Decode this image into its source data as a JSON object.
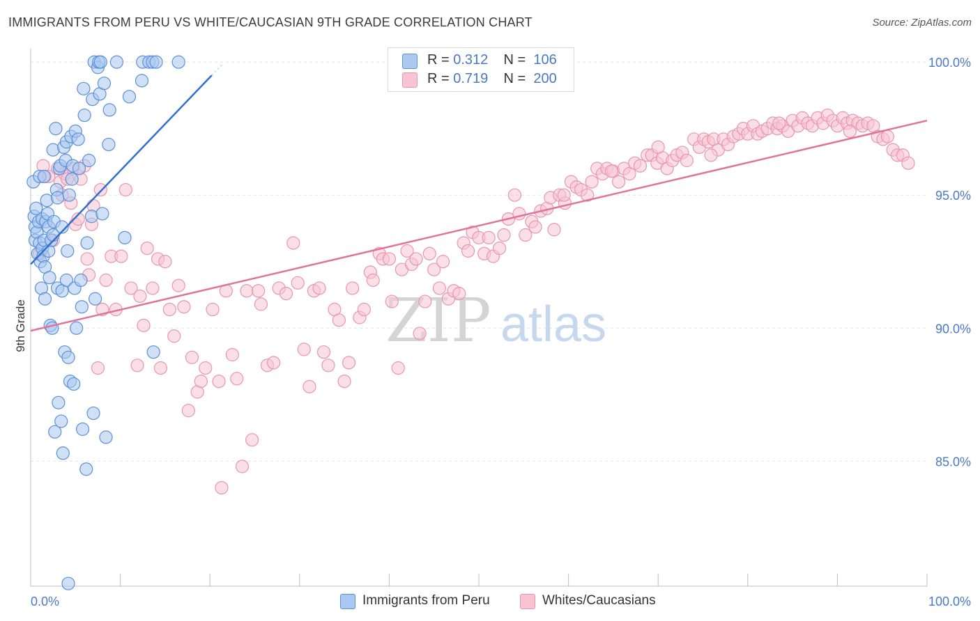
{
  "header": {
    "title": "IMMIGRANTS FROM PERU VS WHITE/CAUCASIAN 9TH GRADE CORRELATION CHART",
    "source": "Source: ZipAtlas.com"
  },
  "watermark": {
    "zip": "ZIP",
    "atlas": "atlas"
  },
  "legend": {
    "rows": [
      {
        "r_label": "R =",
        "r_value": "0.312",
        "n_label": "N =",
        "n_value": "106"
      },
      {
        "r_label": "R =",
        "r_value": "0.719",
        "n_label": "N =",
        "n_value": "200"
      }
    ]
  },
  "bottom_legend": {
    "series1": "Immigrants from Peru",
    "series2": "Whites/Caucasians"
  },
  "colors": {
    "blue_fill": "#aac8f0",
    "blue_stroke": "#5b8fd6",
    "blue_line": "#2f6fd0",
    "pink_fill": "#f7c4d4",
    "pink_stroke": "#e895b0",
    "pink_line": "#e0739b",
    "tick_text": "#4a78c8",
    "grid": "#e2e2e2"
  },
  "chart_data": {
    "type": "scatter",
    "title": "IMMIGRANTS FROM PERU VS WHITE/CAUCASIAN 9TH GRADE CORRELATION CHART",
    "xlabel": "",
    "ylabel": "9th Grade",
    "xlim": [
      0,
      100
    ],
    "ylim": [
      80.3,
      100.5
    ],
    "x_tick_labels": [
      "0.0%",
      "100.0%"
    ],
    "y_ticks": [
      85,
      90,
      95,
      100
    ],
    "y_tick_labels": [
      "85.0%",
      "90.0%",
      "95.0%",
      "100.0%"
    ],
    "grid": true,
    "legend_position": "top-center",
    "series": [
      {
        "name": "Immigrants from Peru",
        "R": 0.312,
        "N": 106,
        "trend": {
          "x": [
            0,
            20.2
          ],
          "y": [
            92.4,
            99.5
          ]
        },
        "points": [
          [
            0.3,
            95.5
          ],
          [
            0.4,
            94.2
          ],
          [
            0.5,
            93.8
          ],
          [
            0.5,
            93.3
          ],
          [
            0.6,
            94.5
          ],
          [
            0.7,
            93.6
          ],
          [
            0.8,
            92.8
          ],
          [
            0.9,
            94.0
          ],
          [
            1.0,
            95.7
          ],
          [
            1.0,
            93.2
          ],
          [
            1.1,
            92.5
          ],
          [
            1.2,
            91.5
          ],
          [
            1.3,
            94.1
          ],
          [
            1.3,
            93.0
          ],
          [
            1.4,
            92.7
          ],
          [
            1.5,
            95.7
          ],
          [
            1.5,
            93.3
          ],
          [
            1.6,
            91.1
          ],
          [
            1.6,
            92.3
          ],
          [
            1.7,
            94.0
          ],
          [
            1.8,
            94.8
          ],
          [
            1.9,
            94.3
          ],
          [
            2.0,
            92.9
          ],
          [
            2.0,
            93.8
          ],
          [
            2.1,
            91.9
          ],
          [
            2.2,
            90.1
          ],
          [
            2.3,
            93.3
          ],
          [
            2.4,
            90.0
          ],
          [
            2.5,
            96.7
          ],
          [
            2.5,
            93.5
          ],
          [
            2.6,
            94.0
          ],
          [
            2.7,
            86.1
          ],
          [
            2.8,
            97.5
          ],
          [
            2.9,
            95.2
          ],
          [
            3.0,
            94.9
          ],
          [
            3.0,
            91.5
          ],
          [
            3.1,
            87.2
          ],
          [
            3.2,
            96.0
          ],
          [
            3.3,
            96.1
          ],
          [
            3.4,
            86.5
          ],
          [
            3.5,
            91.4
          ],
          [
            3.5,
            93.8
          ],
          [
            3.6,
            85.3
          ],
          [
            3.7,
            96.8
          ],
          [
            3.8,
            89.1
          ],
          [
            3.9,
            96.3
          ],
          [
            4.0,
            97.0
          ],
          [
            4.0,
            91.8
          ],
          [
            4.1,
            92.9
          ],
          [
            4.2,
            88.9
          ],
          [
            4.3,
            95.0
          ],
          [
            4.4,
            88.0
          ],
          [
            4.5,
            97.2
          ],
          [
            4.6,
            95.6
          ],
          [
            4.7,
            96.1
          ],
          [
            4.8,
            87.9
          ],
          [
            4.9,
            91.5
          ],
          [
            5.0,
            97.4
          ],
          [
            5.1,
            90.0
          ],
          [
            5.3,
            97.1
          ],
          [
            5.4,
            96.0
          ],
          [
            5.6,
            91.8
          ],
          [
            5.7,
            90.8
          ],
          [
            5.8,
            86.2
          ],
          [
            5.9,
            99.0
          ],
          [
            6.0,
            98.0
          ],
          [
            6.2,
            84.7
          ],
          [
            6.3,
            93.2
          ],
          [
            6.5,
            96.3
          ],
          [
            6.8,
            94.2
          ],
          [
            6.9,
            98.6
          ],
          [
            7.0,
            86.8
          ],
          [
            7.1,
            100.0
          ],
          [
            7.2,
            91.1
          ],
          [
            7.5,
            99.8
          ],
          [
            7.6,
            100.0
          ],
          [
            7.7,
            98.8
          ],
          [
            7.8,
            100.0
          ],
          [
            8.0,
            94.3
          ],
          [
            8.2,
            99.2
          ],
          [
            8.4,
            85.9
          ],
          [
            8.7,
            96.9
          ],
          [
            8.8,
            98.2
          ],
          [
            9.6,
            100.0
          ],
          [
            10.5,
            93.4
          ],
          [
            11.0,
            98.7
          ],
          [
            12.4,
            99.3
          ],
          [
            12.5,
            100.0
          ],
          [
            13.2,
            100.0
          ],
          [
            13.6,
            100.0
          ],
          [
            13.7,
            89.1
          ],
          [
            14.0,
            100.0
          ],
          [
            16.5,
            100.0
          ],
          [
            4.2,
            80.4
          ]
        ]
      },
      {
        "name": "Whites/Caucasians",
        "R": 0.719,
        "N": 200,
        "trend": {
          "x": [
            0,
            100
          ],
          "y": [
            89.9,
            97.8
          ]
        },
        "points": [
          [
            1.0,
            92.8
          ],
          [
            1.4,
            96.1
          ],
          [
            1.6,
            95.7
          ],
          [
            2.0,
            95.7
          ],
          [
            2.5,
            93.3
          ],
          [
            3.0,
            96.0
          ],
          [
            3.3,
            95.5
          ],
          [
            3.5,
            95.0
          ],
          [
            3.8,
            95.8
          ],
          [
            4.1,
            95.6
          ],
          [
            4.5,
            94.7
          ],
          [
            4.7,
            96.0
          ],
          [
            5.0,
            93.9
          ],
          [
            5.3,
            94.1
          ],
          [
            5.6,
            95.6
          ],
          [
            6.0,
            96.1
          ],
          [
            6.3,
            92.6
          ],
          [
            6.5,
            92.0
          ],
          [
            6.8,
            93.9
          ],
          [
            7.0,
            94.6
          ],
          [
            7.5,
            88.5
          ],
          [
            7.8,
            95.2
          ],
          [
            8.0,
            90.7
          ],
          [
            8.4,
            91.8
          ],
          [
            9.0,
            92.7
          ],
          [
            9.5,
            90.7
          ],
          [
            10.1,
            92.7
          ],
          [
            10.6,
            95.2
          ],
          [
            11.2,
            91.5
          ],
          [
            11.9,
            88.6
          ],
          [
            12.2,
            91.2
          ],
          [
            12.6,
            90.1
          ],
          [
            13.0,
            93.0
          ],
          [
            13.6,
            91.5
          ],
          [
            14.2,
            92.6
          ],
          [
            14.5,
            88.5
          ],
          [
            15.0,
            92.5
          ],
          [
            15.5,
            90.7
          ],
          [
            16.0,
            89.7
          ],
          [
            16.5,
            91.6
          ],
          [
            17.1,
            90.8
          ],
          [
            17.6,
            86.9
          ],
          [
            18.0,
            88.9
          ],
          [
            18.6,
            87.6
          ],
          [
            19.0,
            88.0
          ],
          [
            19.5,
            88.5
          ],
          [
            20.3,
            90.7
          ],
          [
            21.0,
            88.0
          ],
          [
            21.3,
            84.0
          ],
          [
            21.8,
            91.4
          ],
          [
            22.5,
            89.0
          ],
          [
            23.0,
            88.1
          ],
          [
            23.6,
            84.8
          ],
          [
            24.1,
            91.4
          ],
          [
            24.7,
            85.8
          ],
          [
            25.4,
            91.4
          ],
          [
            25.7,
            90.9
          ],
          [
            26.4,
            88.6
          ],
          [
            27.1,
            88.7
          ],
          [
            27.7,
            91.5
          ],
          [
            28.5,
            91.3
          ],
          [
            29.3,
            93.2
          ],
          [
            29.8,
            91.7
          ],
          [
            30.5,
            89.2
          ],
          [
            31.1,
            87.8
          ],
          [
            31.6,
            91.4
          ],
          [
            32.2,
            91.5
          ],
          [
            32.7,
            89.1
          ],
          [
            33.2,
            88.6
          ],
          [
            33.9,
            90.7
          ],
          [
            34.4,
            90.3
          ],
          [
            35.0,
            88.0
          ],
          [
            35.5,
            88.7
          ],
          [
            35.9,
            91.5
          ],
          [
            36.7,
            90.4
          ],
          [
            37.2,
            90.7
          ],
          [
            37.9,
            92.1
          ],
          [
            38.2,
            91.8
          ],
          [
            38.9,
            92.8
          ],
          [
            39.3,
            92.6
          ],
          [
            40.0,
            92.6
          ],
          [
            40.3,
            91.0
          ],
          [
            41.0,
            88.5
          ],
          [
            41.4,
            92.2
          ],
          [
            42.0,
            92.9
          ],
          [
            42.5,
            92.4
          ],
          [
            43.0,
            92.6
          ],
          [
            43.4,
            89.8
          ],
          [
            44.0,
            91.0
          ],
          [
            44.5,
            92.8
          ],
          [
            45.0,
            92.2
          ],
          [
            45.6,
            91.5
          ],
          [
            46.0,
            92.5
          ],
          [
            46.6,
            91.1
          ],
          [
            47.2,
            91.4
          ],
          [
            47.8,
            91.3
          ],
          [
            48.3,
            93.2
          ],
          [
            48.8,
            92.9
          ],
          [
            49.3,
            93.6
          ],
          [
            50.0,
            93.4
          ],
          [
            50.6,
            92.8
          ],
          [
            51.1,
            93.4
          ],
          [
            51.6,
            92.7
          ],
          [
            52.3,
            93.0
          ],
          [
            52.8,
            93.5
          ],
          [
            53.3,
            94.1
          ],
          [
            54.0,
            95.0
          ],
          [
            54.5,
            94.3
          ],
          [
            55.2,
            93.5
          ],
          [
            55.9,
            94.0
          ],
          [
            56.3,
            93.8
          ],
          [
            56.9,
            94.4
          ],
          [
            57.6,
            94.5
          ],
          [
            58.0,
            94.9
          ],
          [
            58.4,
            93.7
          ],
          [
            59.0,
            95.0
          ],
          [
            59.6,
            94.7
          ],
          [
            60.3,
            95.5
          ],
          [
            60.9,
            95.3
          ],
          [
            61.4,
            95.2
          ],
          [
            62.1,
            95.0
          ],
          [
            62.6,
            95.5
          ],
          [
            63.2,
            96.0
          ],
          [
            63.8,
            95.8
          ],
          [
            64.3,
            96.0
          ],
          [
            65.0,
            95.9
          ],
          [
            65.6,
            95.5
          ],
          [
            66.2,
            96.0
          ],
          [
            66.8,
            95.8
          ],
          [
            67.4,
            96.2
          ],
          [
            68.0,
            96.1
          ],
          [
            68.8,
            96.5
          ],
          [
            69.3,
            96.5
          ],
          [
            69.9,
            96.2
          ],
          [
            70.5,
            96.4
          ],
          [
            71.0,
            96.0
          ],
          [
            71.6,
            96.3
          ],
          [
            72.1,
            96.5
          ],
          [
            72.7,
            96.6
          ],
          [
            73.2,
            96.3
          ],
          [
            74.0,
            97.1
          ],
          [
            74.6,
            96.8
          ],
          [
            75.1,
            97.1
          ],
          [
            75.6,
            97.0
          ],
          [
            76.2,
            97.1
          ],
          [
            76.7,
            96.7
          ],
          [
            77.3,
            97.1
          ],
          [
            77.8,
            96.9
          ],
          [
            78.4,
            97.2
          ],
          [
            79.0,
            97.3
          ],
          [
            79.5,
            97.5
          ],
          [
            80.0,
            97.3
          ],
          [
            80.6,
            97.6
          ],
          [
            81.1,
            97.3
          ],
          [
            81.6,
            97.4
          ],
          [
            82.2,
            97.5
          ],
          [
            82.8,
            97.7
          ],
          [
            83.3,
            97.5
          ],
          [
            83.9,
            97.6
          ],
          [
            84.5,
            97.4
          ],
          [
            85.0,
            97.8
          ],
          [
            85.6,
            97.6
          ],
          [
            86.1,
            97.9
          ],
          [
            86.7,
            97.7
          ],
          [
            87.2,
            97.6
          ],
          [
            87.8,
            97.9
          ],
          [
            88.4,
            97.7
          ],
          [
            88.9,
            98.0
          ],
          [
            89.5,
            97.8
          ],
          [
            90.0,
            97.6
          ],
          [
            90.6,
            97.9
          ],
          [
            91.1,
            97.7
          ],
          [
            91.7,
            97.8
          ],
          [
            92.3,
            97.7
          ],
          [
            92.8,
            97.6
          ],
          [
            93.4,
            97.7
          ],
          [
            94.0,
            97.6
          ],
          [
            94.5,
            97.2
          ],
          [
            95.1,
            97.1
          ],
          [
            95.6,
            97.2
          ],
          [
            96.2,
            96.7
          ],
          [
            96.7,
            96.5
          ],
          [
            97.3,
            96.5
          ],
          [
            97.9,
            96.2
          ],
          [
            59.5,
            95.0
          ],
          [
            64.8,
            95.9
          ],
          [
            70.0,
            96.8
          ],
          [
            75.9,
            96.5
          ],
          [
            83.5,
            97.7
          ],
          [
            91.4,
            97.4
          ]
        ]
      }
    ]
  }
}
